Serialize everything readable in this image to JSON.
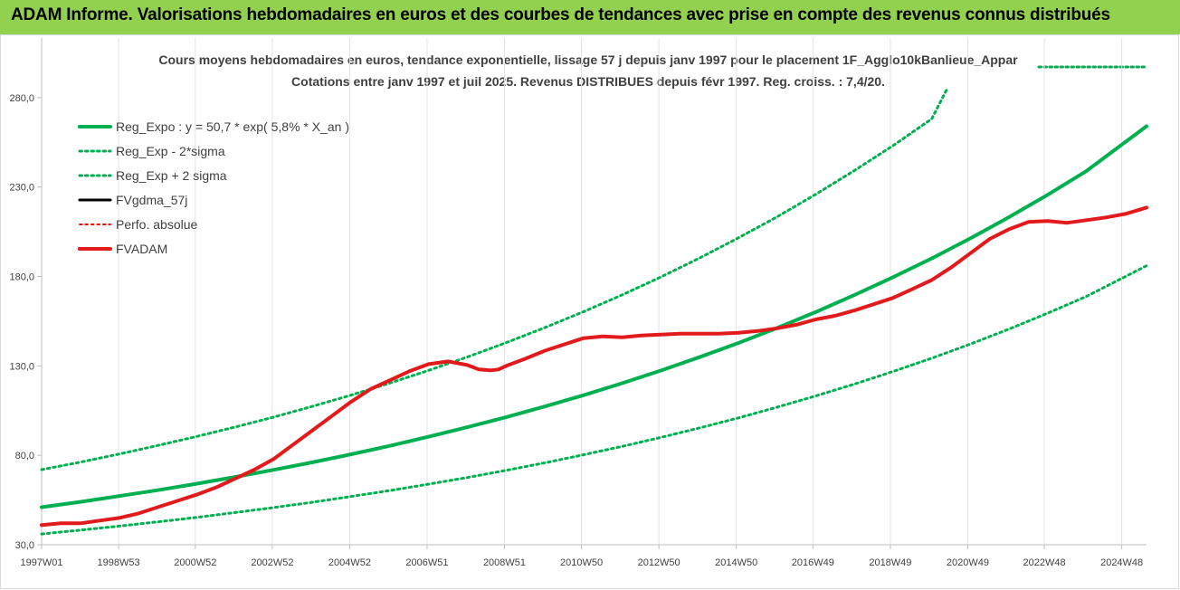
{
  "banner": {
    "text": "ADAM Informe. Valorisations hebdomadaires en euros et des courbes de tendances avec prise en compte des revenus connus distribués",
    "color": "#92d050"
  },
  "chart_data": {
    "type": "line",
    "title": "Cours moyens hebdomadaires en euros, tendance exponentielle, lissage 57 j depuis janv 1997 pour le placement 1F_Agglo10kBanlieue_Appar",
    "subtitle": "Cotations entre janv 1997 et juil 2025. Revenus DISTRIBUES depuis févr 1997. Reg. croiss. : 7,4/20.",
    "xlabel": "",
    "ylabel": "",
    "x_range": [
      1997.0,
      2025.55
    ],
    "ylim": [
      30,
      285
    ],
    "yticks": [
      30,
      80,
      130,
      180,
      230,
      280
    ],
    "ytick_labels": [
      "30,0",
      "80,0",
      "130,0",
      "180,0",
      "230,0",
      "280,0"
    ],
    "xticks": [
      1997.0,
      1998.99,
      2000.97,
      2002.96,
      2004.96,
      2006.96,
      2008.96,
      2010.95,
      2012.95,
      2014.95,
      2016.93,
      2018.93,
      2020.93,
      2022.91,
      2024.91
    ],
    "xtick_labels": [
      "1997W01",
      "1998W53",
      "2000W52",
      "2002W52",
      "2004W52",
      "2006W51",
      "2008W51",
      "2010W50",
      "2012W50",
      "2014W50",
      "2016W49",
      "2018W49",
      "2020W49",
      "2022W48",
      "2024W48"
    ],
    "grid": "vertical",
    "legend_position": "top-left",
    "series": [
      {
        "name": "Reg_Expo : y = 50,7 * exp( 5,8% *  X_an )",
        "color": "#00b050",
        "style": "solid",
        "width": 4,
        "x": [
          1997.0,
          1998.0,
          1999.0,
          2000.0,
          2001.0,
          2002.0,
          2003.0,
          2004.0,
          2005.0,
          2006.0,
          2007.0,
          2008.0,
          2009.0,
          2010.0,
          2011.0,
          2012.0,
          2013.0,
          2014.0,
          2015.0,
          2016.0,
          2017.0,
          2018.0,
          2019.0,
          2020.0,
          2021.0,
          2022.0,
          2023.0,
          2024.0,
          2025.55
        ],
        "values": [
          51.0,
          54.0,
          57.2,
          60.5,
          64.1,
          67.9,
          71.9,
          76.1,
          80.6,
          85.3,
          90.4,
          95.7,
          101.3,
          107.3,
          113.6,
          120.3,
          127.4,
          134.9,
          142.8,
          151.2,
          160.1,
          169.6,
          179.6,
          190.1,
          201.3,
          213.2,
          225.7,
          239.0,
          264.0
        ]
      },
      {
        "name": "Reg_Exp - 2*sigma",
        "color": "#00b050",
        "style": "dotted",
        "width": 3,
        "x": [
          1997.0,
          1998.0,
          1999.0,
          2000.0,
          2001.0,
          2002.0,
          2003.0,
          2004.0,
          2005.0,
          2006.0,
          2007.0,
          2008.0,
          2009.0,
          2010.0,
          2011.0,
          2012.0,
          2013.0,
          2014.0,
          2015.0,
          2016.0,
          2017.0,
          2018.0,
          2019.0,
          2020.0,
          2021.0,
          2022.0,
          2023.0,
          2024.0,
          2025.55
        ],
        "values": [
          36.0,
          38.2,
          40.4,
          42.8,
          45.3,
          48.0,
          50.8,
          53.8,
          57.0,
          60.3,
          63.9,
          67.6,
          71.6,
          75.8,
          80.3,
          85.0,
          90.0,
          95.3,
          100.9,
          106.9,
          113.2,
          119.8,
          126.9,
          134.3,
          142.2,
          150.6,
          159.5,
          168.9,
          186.0
        ]
      },
      {
        "name": "Reg_Exp + 2 sigma",
        "color": "#00b050",
        "style": "dotted",
        "width": 3,
        "x": [
          1997.0,
          1998.0,
          1999.0,
          2000.0,
          2001.0,
          2002.0,
          2003.0,
          2004.0,
          2005.0,
          2006.0,
          2007.0,
          2008.0,
          2009.0,
          2010.0,
          2011.0,
          2012.0,
          2013.0,
          2014.0,
          2015.0,
          2016.0,
          2017.0,
          2018.0,
          2019.0,
          2020.0,
          2020.4
        ],
        "values": [
          72.0,
          76.2,
          80.7,
          85.5,
          90.5,
          95.8,
          101.4,
          107.4,
          113.7,
          120.4,
          127.5,
          135.0,
          143.0,
          151.4,
          160.3,
          169.7,
          179.7,
          190.3,
          201.5,
          213.3,
          225.9,
          239.2,
          253.2,
          268.1,
          285.0
        ]
      },
      {
        "name": "FVgdma_57j",
        "color": "#000000",
        "style": "solid",
        "width": 3,
        "x": [],
        "values": []
      },
      {
        "name": "Perfo. absolue",
        "color": "#ff0000",
        "style": "dotted",
        "width": 2,
        "x": [],
        "values": []
      },
      {
        "name": "FVADAM",
        "color": "#e31a1c",
        "style": "solid",
        "width": 4,
        "x": [
          1997.0,
          1997.5,
          1998.0,
          1998.5,
          1999.0,
          1999.5,
          2000.0,
          2000.5,
          2001.0,
          2001.5,
          2002.0,
          2002.5,
          2003.0,
          2003.5,
          2004.0,
          2004.5,
          2005.0,
          2005.5,
          2006.0,
          2006.5,
          2007.0,
          2007.5,
          2008.0,
          2008.3,
          2008.6,
          2008.8,
          2009.0,
          2009.5,
          2010.0,
          2010.5,
          2011.0,
          2011.5,
          2012.0,
          2012.5,
          2013.0,
          2013.5,
          2014.0,
          2014.5,
          2015.0,
          2015.5,
          2016.0,
          2016.5,
          2017.0,
          2017.5,
          2018.0,
          2018.5,
          2019.0,
          2019.5,
          2020.0,
          2020.5,
          2021.0,
          2021.5,
          2022.0,
          2022.5,
          2023.0,
          2023.5,
          2024.0,
          2024.5,
          2025.0,
          2025.55
        ],
        "values": [
          41.0,
          42.0,
          42.0,
          43.5,
          45.0,
          47.5,
          51.0,
          54.5,
          58.0,
          62.0,
          67.0,
          72.0,
          78.0,
          86.0,
          94.0,
          102.0,
          110.0,
          117.0,
          122.0,
          127.0,
          131.0,
          132.5,
          130.5,
          128.0,
          127.5,
          128.0,
          130.0,
          134.0,
          138.5,
          142.0,
          145.5,
          146.5,
          146.0,
          147.0,
          147.5,
          148.0,
          148.0,
          148.0,
          148.5,
          149.5,
          151.0,
          153.0,
          156.0,
          158.0,
          161.0,
          164.5,
          168.0,
          173.0,
          178.0,
          185.0,
          193.0,
          201.0,
          206.5,
          210.5,
          211.0,
          210.0,
          211.5,
          213.0,
          215.0,
          218.5
        ]
      }
    ]
  }
}
